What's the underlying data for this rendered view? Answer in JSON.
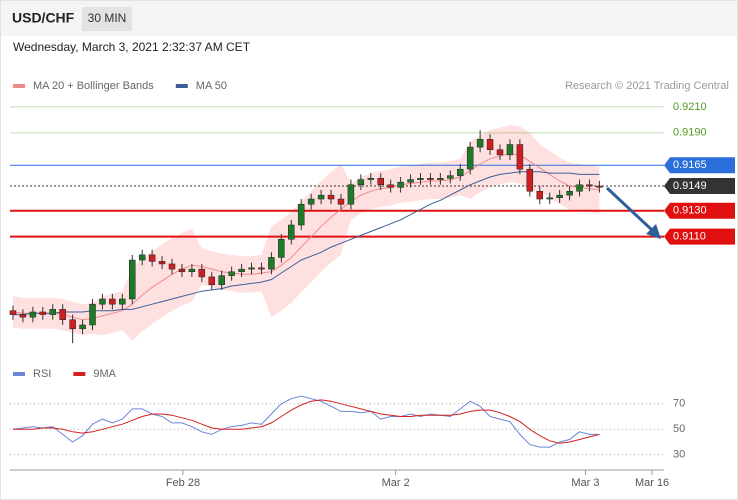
{
  "header": {
    "symbol": "USD/CHF",
    "interval": "30 MIN",
    "timestamp": "Wednesday, March 3, 2021 2:32:37 AM CET"
  },
  "chart_data": [
    {
      "type": "candlestick",
      "source": "Research © 2021 Trading Central",
      "x": [
        0,
        1,
        2,
        3,
        4,
        5,
        6,
        7,
        8,
        9,
        10,
        11,
        12,
        13,
        14,
        15,
        16,
        17,
        18,
        19,
        20,
        21,
        22,
        23,
        24,
        25,
        26,
        27,
        28,
        29,
        30,
        31,
        32,
        33,
        34,
        35,
        36,
        37,
        38,
        39,
        40,
        41,
        42,
        43,
        44,
        45,
        46,
        47,
        48,
        49,
        50,
        51,
        52,
        53,
        54,
        55,
        56,
        57,
        58,
        59
      ],
      "xlim": [
        -0.3,
        65.5
      ],
      "ylim": [
        0.9015,
        0.9223
      ],
      "open": [
        0.9053,
        0.905,
        0.9048,
        0.9052,
        0.905,
        0.9054,
        0.9046,
        0.9039,
        0.9042,
        0.9058,
        0.9062,
        0.9058,
        0.9062,
        0.9092,
        0.9096,
        0.9091,
        0.9089,
        0.9085,
        0.9083,
        0.9085,
        0.9079,
        0.9073,
        0.908,
        0.9083,
        0.9085,
        0.9086,
        0.9085,
        0.9094,
        0.9108,
        0.9119,
        0.9135,
        0.9139,
        0.9142,
        0.9139,
        0.9135,
        0.915,
        0.9154,
        0.9155,
        0.915,
        0.9148,
        0.9152,
        0.9154,
        0.9155,
        0.9154,
        0.9155,
        0.9157,
        0.9162,
        0.9179,
        0.9185,
        0.9177,
        0.9173,
        0.9181,
        0.9162,
        0.9145,
        0.9139,
        0.914,
        0.9142,
        0.9145,
        0.915,
        0.9149
      ],
      "high": [
        0.9057,
        0.9054,
        0.9056,
        0.9056,
        0.9058,
        0.9058,
        0.905,
        0.9046,
        0.9062,
        0.9066,
        0.9066,
        0.9066,
        0.9096,
        0.91,
        0.91,
        0.9095,
        0.9093,
        0.9089,
        0.9089,
        0.9089,
        0.9083,
        0.9084,
        0.9087,
        0.9089,
        0.909,
        0.909,
        0.9098,
        0.9112,
        0.9123,
        0.9139,
        0.9143,
        0.9146,
        0.9146,
        0.9143,
        0.9154,
        0.9158,
        0.9159,
        0.9159,
        0.9154,
        0.9156,
        0.9158,
        0.9159,
        0.9159,
        0.9159,
        0.9161,
        0.9166,
        0.9183,
        0.9192,
        0.9189,
        0.9181,
        0.9185,
        0.9185,
        0.9166,
        0.9149,
        0.9144,
        0.9146,
        0.9149,
        0.9154,
        0.9154,
        0.9153
      ],
      "low": [
        0.9046,
        0.9044,
        0.9044,
        0.9046,
        0.9046,
        0.9042,
        0.9028,
        0.9035,
        0.9038,
        0.9054,
        0.9054,
        0.9054,
        0.9058,
        0.9088,
        0.9087,
        0.9085,
        0.9081,
        0.9079,
        0.9079,
        0.9075,
        0.9069,
        0.9069,
        0.9076,
        0.9079,
        0.9081,
        0.9081,
        0.9081,
        0.909,
        0.9104,
        0.9115,
        0.9131,
        0.9135,
        0.9135,
        0.9131,
        0.9131,
        0.9146,
        0.915,
        0.9146,
        0.9144,
        0.9144,
        0.9148,
        0.915,
        0.915,
        0.915,
        0.9151,
        0.9153,
        0.9158,
        0.9175,
        0.9173,
        0.9169,
        0.9169,
        0.9158,
        0.9141,
        0.9135,
        0.9135,
        0.9136,
        0.9138,
        0.9141,
        0.9145,
        0.9144
      ],
      "close": [
        0.905,
        0.9048,
        0.9052,
        0.905,
        0.9054,
        0.9046,
        0.9039,
        0.9042,
        0.9058,
        0.9062,
        0.9058,
        0.9062,
        0.9092,
        0.9096,
        0.9091,
        0.9089,
        0.9085,
        0.9083,
        0.9085,
        0.9079,
        0.9073,
        0.908,
        0.9083,
        0.9085,
        0.9086,
        0.9085,
        0.9094,
        0.9108,
        0.9119,
        0.9135,
        0.9139,
        0.9142,
        0.9139,
        0.9135,
        0.915,
        0.9154,
        0.9155,
        0.915,
        0.9148,
        0.9152,
        0.9154,
        0.9155,
        0.9154,
        0.9155,
        0.9157,
        0.9162,
        0.9179,
        0.9185,
        0.9177,
        0.9173,
        0.9181,
        0.9162,
        0.9145,
        0.9139,
        0.914,
        0.9142,
        0.9145,
        0.915,
        0.9149,
        0.9148
      ],
      "up_color": "#1e7a28",
      "down_color": "#cc1f1f",
      "series": [
        {
          "name": "MA 20 + Bollinger Bands",
          "color": "#f08a8a",
          "values": [
            0.9052,
            0.9051,
            0.9051,
            0.9051,
            0.9051,
            0.905,
            0.9048,
            0.9046,
            0.9047,
            0.9049,
            0.9051,
            0.9053,
            0.9058,
            0.9065,
            0.9071,
            0.9076,
            0.9081,
            0.9085,
            0.9088,
            0.9087,
            0.9085,
            0.9083,
            0.9082,
            0.9081,
            0.9081,
            0.9082,
            0.9083,
            0.9088,
            0.9094,
            0.9102,
            0.911,
            0.9118,
            0.9125,
            0.9131,
            0.9137,
            0.9142,
            0.9145,
            0.9147,
            0.9148,
            0.915,
            0.9151,
            0.9152,
            0.9153,
            0.9153,
            0.9154,
            0.9156,
            0.9161,
            0.9166,
            0.917,
            0.9172,
            0.9174,
            0.9173,
            0.9168,
            0.9163,
            0.9158,
            0.9153,
            0.9149,
            0.9148,
            0.9147,
            0.9146
          ]
        },
        {
          "name": "MA 50",
          "color": "#3b5e99",
          "values": [
            0.905,
            0.905,
            0.9051,
            0.9051,
            0.9051,
            0.9052,
            0.9052,
            0.9052,
            0.9053,
            0.9053,
            0.9053,
            0.9054,
            0.9054,
            0.9056,
            0.9058,
            0.906,
            0.9062,
            0.9064,
            0.9066,
            0.9068,
            0.9069,
            0.907,
            0.9072,
            0.9073,
            0.9074,
            0.9075,
            0.9077,
            0.9082,
            0.9087,
            0.9092,
            0.9095,
            0.9098,
            0.9102,
            0.9105,
            0.9108,
            0.9111,
            0.9114,
            0.9117,
            0.912,
            0.9123,
            0.9127,
            0.9131,
            0.9135,
            0.9138,
            0.9142,
            0.9146,
            0.915,
            0.9153,
            0.9156,
            0.9158,
            0.9159,
            0.916,
            0.916,
            0.916,
            0.9159,
            0.9159,
            0.9159,
            0.9158,
            0.9158,
            0.9158
          ]
        }
      ],
      "band_color": "#ffcccc",
      "bollinger_upper": [
        0.9064,
        0.9063,
        0.9063,
        0.9063,
        0.9063,
        0.9062,
        0.906,
        0.9058,
        0.9059,
        0.9064,
        0.9066,
        0.9068,
        0.9086,
        0.9093,
        0.9099,
        0.9104,
        0.9109,
        0.9113,
        0.9116,
        0.9101,
        0.9099,
        0.9097,
        0.9096,
        0.9095,
        0.9095,
        0.9096,
        0.9118,
        0.9123,
        0.9129,
        0.9137,
        0.9145,
        0.9153,
        0.916,
        0.9166,
        0.9151,
        0.9156,
        0.9159,
        0.9161,
        0.9162,
        0.9164,
        0.9165,
        0.9166,
        0.9167,
        0.9167,
        0.9168,
        0.917,
        0.9183,
        0.9188,
        0.9192,
        0.9194,
        0.9196,
        0.9195,
        0.919,
        0.9181,
        0.9176,
        0.9171,
        0.9167,
        0.9166,
        0.9165,
        0.9164
      ],
      "bollinger_lower": [
        0.904,
        0.9039,
        0.9039,
        0.9039,
        0.9039,
        0.9038,
        0.9036,
        0.9034,
        0.9035,
        0.9034,
        0.9036,
        0.9038,
        0.903,
        0.9037,
        0.9043,
        0.9048,
        0.9053,
        0.9057,
        0.906,
        0.9073,
        0.9071,
        0.9069,
        0.9068,
        0.9067,
        0.9067,
        0.9068,
        0.9048,
        0.9053,
        0.9059,
        0.9067,
        0.9075,
        0.9083,
        0.909,
        0.9096,
        0.9123,
        0.9128,
        0.9131,
        0.9133,
        0.9134,
        0.9136,
        0.9137,
        0.9138,
        0.9139,
        0.9139,
        0.914,
        0.9142,
        0.9139,
        0.9144,
        0.9148,
        0.915,
        0.9152,
        0.9151,
        0.9146,
        0.9145,
        0.914,
        0.9135,
        0.9131,
        0.913,
        0.9129,
        0.9128
      ],
      "levels": [
        {
          "value": 0.921,
          "label": "0.9210",
          "color": "#4f9a1c",
          "boxed": false,
          "dotted": false,
          "line_width": 1
        },
        {
          "value": 0.919,
          "label": "0.9190",
          "color": "#4f9a1c",
          "boxed": false,
          "dotted": false,
          "line_width": 1
        },
        {
          "value": 0.9165,
          "label": "0.9165",
          "color": "#2a6fdb",
          "boxed": true,
          "dotted": false,
          "line_width": 1
        },
        {
          "value": 0.9149,
          "label": "0.9149",
          "color": "#333333",
          "boxed": true,
          "dotted": true,
          "line_width": 1
        },
        {
          "value": 0.913,
          "label": "0.9130",
          "color": "#e01010",
          "boxed": true,
          "dotted": false,
          "line_width": 2
        },
        {
          "value": 0.911,
          "label": "0.9110",
          "color": "#e01010",
          "boxed": true,
          "dotted": false,
          "line_width": 2
        }
      ]
    },
    {
      "type": "line",
      "x": [
        0,
        1,
        2,
        3,
        4,
        5,
        6,
        7,
        8,
        9,
        10,
        11,
        12,
        13,
        14,
        15,
        16,
        17,
        18,
        19,
        20,
        21,
        22,
        23,
        24,
        25,
        26,
        27,
        28,
        29,
        30,
        31,
        32,
        33,
        34,
        35,
        36,
        37,
        38,
        39,
        40,
        41,
        42,
        43,
        44,
        45,
        46,
        47,
        48,
        49,
        50,
        51,
        52,
        53,
        54,
        55,
        56,
        57,
        58,
        59
      ],
      "xlim": [
        -0.3,
        65.5
      ],
      "xticks": [
        {
          "value": 17.1,
          "label": "Feb 28"
        },
        {
          "value": 38.5,
          "label": "Mar 2"
        },
        {
          "value": 57.6,
          "label": "Mar 3"
        },
        {
          "value": 64.3,
          "label": "Mar 16"
        }
      ],
      "ylim": [
        22,
        80
      ],
      "yticks": [
        30,
        50,
        70
      ],
      "grid": true,
      "series": [
        {
          "name": "RSI",
          "color": "#6b86d6",
          "values": [
            50,
            51,
            52,
            51,
            52,
            46,
            40,
            45,
            54,
            58,
            55,
            58,
            66,
            66,
            62,
            60,
            55,
            55,
            52,
            48,
            46,
            50,
            52,
            53,
            55,
            54,
            62,
            70,
            74,
            76,
            74,
            72,
            68,
            64,
            64,
            63,
            64,
            58,
            60,
            60,
            62,
            60,
            62,
            61,
            60,
            66,
            72,
            68,
            60,
            58,
            56,
            46,
            38,
            36,
            36,
            40,
            42,
            48,
            46,
            46
          ]
        },
        {
          "name": "9MA",
          "color": "#d42020",
          "values": [
            50,
            50,
            50,
            51,
            51,
            50,
            48,
            47,
            48,
            50,
            52,
            54,
            57,
            60,
            62,
            62,
            61,
            59,
            57,
            54,
            51,
            50,
            50,
            50,
            51,
            52,
            55,
            60,
            65,
            69,
            72,
            73,
            72,
            70,
            68,
            66,
            64,
            62,
            61,
            60,
            60,
            61,
            61,
            61,
            61,
            62,
            64,
            65,
            65,
            63,
            60,
            56,
            50,
            45,
            41,
            39,
            40,
            42,
            44,
            46
          ]
        }
      ]
    }
  ]
}
